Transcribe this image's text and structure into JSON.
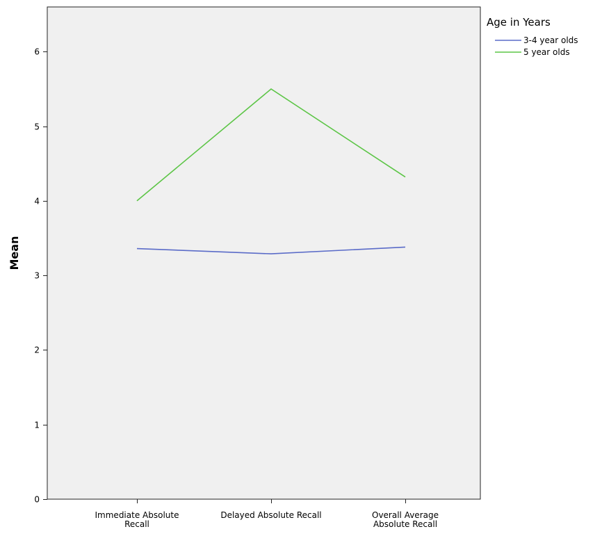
{
  "chart_data": {
    "type": "line",
    "title": "",
    "xlabel": "",
    "ylabel": "Mean",
    "ylim": [
      0,
      6.6
    ],
    "yticks": [
      0,
      1,
      2,
      3,
      4,
      5,
      6
    ],
    "grid": false,
    "legend_position": "top-right",
    "legend_title": "Age in Years",
    "categories": [
      [
        "Immediate Absolute",
        "Recall"
      ],
      [
        "Delayed Absolute Recall"
      ],
      [
        "Overall Average",
        "Absolute Recall"
      ]
    ],
    "series": [
      {
        "name": "3-4 year olds",
        "color": "#5A6BC8",
        "values": [
          3.36,
          3.29,
          3.38
        ]
      },
      {
        "name": "5 year olds",
        "color": "#5CC546",
        "values": [
          4.0,
          5.5,
          4.32
        ]
      }
    ],
    "plot_background": "#F0F0F0"
  }
}
